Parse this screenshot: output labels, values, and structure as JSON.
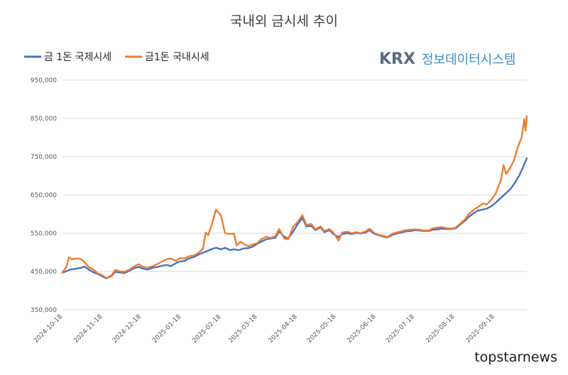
{
  "chart_data": {
    "type": "line",
    "title": "국내외 금시세 추이",
    "ylim": [
      350000,
      950000
    ],
    "y_ticks": [
      "350,000",
      "450,000",
      "550,000",
      "650,000",
      "750,000",
      "850,000",
      "950,000"
    ],
    "y_tick_values": [
      350000,
      450000,
      550000,
      650000,
      750000,
      850000,
      950000
    ],
    "x_start": "2024-10-18",
    "x_end": "2025-10-13",
    "x_ticks": [
      "2024-10-18",
      "2024-11-18",
      "2024-12-18",
      "2025-01-18",
      "2025-02-18",
      "2025-03-18",
      "2025-04-18",
      "2025-05-18",
      "2025-06-18",
      "2025-07-18",
      "2025-08-18",
      "2025-09-18"
    ],
    "grid": true,
    "legend_position": "top-left",
    "series": [
      {
        "name": "금 1돈 국제시세",
        "color": "#4472c4",
        "points": [
          [
            "2024-10-18",
            447000
          ],
          [
            "2024-10-21",
            451000
          ],
          [
            "2024-10-24",
            455000
          ],
          [
            "2024-10-28",
            457000
          ],
          [
            "2024-11-01",
            459000
          ],
          [
            "2024-11-04",
            463000
          ],
          [
            "2024-11-07",
            456000
          ],
          [
            "2024-11-11",
            448000
          ],
          [
            "2024-11-14",
            444000
          ],
          [
            "2024-11-18",
            437000
          ],
          [
            "2024-11-21",
            432000
          ],
          [
            "2024-11-25",
            438000
          ],
          [
            "2024-11-28",
            449000
          ],
          [
            "2024-12-02",
            447000
          ],
          [
            "2024-12-05",
            446000
          ],
          [
            "2024-12-09",
            452000
          ],
          [
            "2024-12-12",
            458000
          ],
          [
            "2024-12-16",
            462000
          ],
          [
            "2024-12-19",
            458000
          ],
          [
            "2024-12-23",
            455000
          ],
          [
            "2024-12-27",
            460000
          ],
          [
            "2024-12-31",
            462000
          ],
          [
            "2025-01-03",
            465000
          ],
          [
            "2025-01-07",
            467000
          ],
          [
            "2025-01-10",
            464000
          ],
          [
            "2025-01-14",
            472000
          ],
          [
            "2025-01-17",
            476000
          ],
          [
            "2025-01-21",
            478000
          ],
          [
            "2025-01-24",
            484000
          ],
          [
            "2025-01-28",
            488000
          ],
          [
            "2025-02-01",
            495000
          ],
          [
            "2025-02-04",
            499000
          ],
          [
            "2025-02-07",
            503000
          ],
          [
            "2025-02-11",
            509000
          ],
          [
            "2025-02-14",
            512000
          ],
          [
            "2025-02-18",
            508000
          ],
          [
            "2025-02-21",
            512000
          ],
          [
            "2025-02-25",
            506000
          ],
          [
            "2025-02-28",
            508000
          ],
          [
            "2025-03-04",
            506000
          ],
          [
            "2025-03-07",
            510000
          ],
          [
            "2025-03-11",
            511000
          ],
          [
            "2025-03-14",
            514000
          ],
          [
            "2025-03-18",
            522000
          ],
          [
            "2025-03-21",
            528000
          ],
          [
            "2025-03-25",
            534000
          ],
          [
            "2025-03-28",
            536000
          ],
          [
            "2025-04-01",
            538000
          ],
          [
            "2025-04-04",
            555000
          ],
          [
            "2025-04-08",
            541000
          ],
          [
            "2025-04-11",
            536000
          ],
          [
            "2025-04-15",
            555000
          ],
          [
            "2025-04-18",
            572000
          ],
          [
            "2025-04-22",
            590000
          ],
          [
            "2025-04-25",
            568000
          ],
          [
            "2025-04-29",
            569000
          ],
          [
            "2025-05-02",
            558000
          ],
          [
            "2025-05-06",
            565000
          ],
          [
            "2025-05-09",
            553000
          ],
          [
            "2025-05-13",
            558000
          ],
          [
            "2025-05-16",
            548000
          ],
          [
            "2025-05-20",
            540000
          ],
          [
            "2025-05-23",
            548000
          ],
          [
            "2025-05-27",
            550000
          ],
          [
            "2025-05-30",
            548000
          ],
          [
            "2025-06-03",
            551000
          ],
          [
            "2025-06-06",
            549000
          ],
          [
            "2025-06-10",
            552000
          ],
          [
            "2025-06-13",
            558000
          ],
          [
            "2025-06-17",
            548000
          ],
          [
            "2025-06-20",
            545000
          ],
          [
            "2025-06-24",
            541000
          ],
          [
            "2025-06-27",
            539000
          ],
          [
            "2025-07-01",
            546000
          ],
          [
            "2025-07-04",
            549000
          ],
          [
            "2025-07-08",
            552000
          ],
          [
            "2025-07-11",
            555000
          ],
          [
            "2025-07-15",
            556000
          ],
          [
            "2025-07-18",
            558000
          ],
          [
            "2025-07-22",
            557000
          ],
          [
            "2025-07-25",
            556000
          ],
          [
            "2025-07-29",
            556000
          ],
          [
            "2025-08-01",
            559000
          ],
          [
            "2025-08-05",
            560000
          ],
          [
            "2025-08-08",
            562000
          ],
          [
            "2025-08-12",
            561000
          ],
          [
            "2025-08-15",
            561000
          ],
          [
            "2025-08-19",
            563000
          ],
          [
            "2025-08-22",
            572000
          ],
          [
            "2025-08-26",
            582000
          ],
          [
            "2025-08-29",
            593000
          ],
          [
            "2025-09-02",
            603000
          ],
          [
            "2025-09-05",
            609000
          ],
          [
            "2025-09-09",
            612000
          ],
          [
            "2025-09-12",
            614000
          ],
          [
            "2025-09-16",
            622000
          ],
          [
            "2025-09-19",
            630000
          ],
          [
            "2025-09-23",
            643000
          ],
          [
            "2025-09-26",
            652000
          ],
          [
            "2025-09-30",
            664000
          ],
          [
            "2025-10-03",
            678000
          ],
          [
            "2025-10-07",
            700000
          ],
          [
            "2025-10-10",
            722000
          ],
          [
            "2025-10-13",
            746000
          ]
        ]
      },
      {
        "name": "금1돈 국내시세",
        "color": "#ed7d31",
        "points": [
          [
            "2024-10-18",
            448000
          ],
          [
            "2024-10-21",
            462000
          ],
          [
            "2024-10-23",
            487000
          ],
          [
            "2024-10-25",
            482000
          ],
          [
            "2024-10-29",
            484000
          ],
          [
            "2024-11-01",
            483000
          ],
          [
            "2024-11-04",
            475000
          ],
          [
            "2024-11-07",
            462000
          ],
          [
            "2024-11-11",
            455000
          ],
          [
            "2024-11-14",
            446000
          ],
          [
            "2024-11-18",
            440000
          ],
          [
            "2024-11-21",
            433000
          ],
          [
            "2024-11-25",
            440000
          ],
          [
            "2024-11-28",
            454000
          ],
          [
            "2024-12-02",
            450000
          ],
          [
            "2024-12-05",
            449000
          ],
          [
            "2024-12-09",
            455000
          ],
          [
            "2024-12-12",
            462000
          ],
          [
            "2024-12-16",
            469000
          ],
          [
            "2024-12-19",
            463000
          ],
          [
            "2024-12-23",
            460000
          ],
          [
            "2024-12-27",
            464000
          ],
          [
            "2024-12-31",
            470000
          ],
          [
            "2025-01-03",
            476000
          ],
          [
            "2025-01-07",
            482000
          ],
          [
            "2025-01-10",
            484000
          ],
          [
            "2025-01-14",
            478000
          ],
          [
            "2025-01-17",
            485000
          ],
          [
            "2025-01-21",
            484000
          ],
          [
            "2025-01-24",
            490000
          ],
          [
            "2025-01-28",
            492000
          ],
          [
            "2025-02-01",
            500000
          ],
          [
            "2025-02-04",
            510000
          ],
          [
            "2025-02-06",
            552000
          ],
          [
            "2025-02-08",
            545000
          ],
          [
            "2025-02-11",
            575000
          ],
          [
            "2025-02-14",
            612000
          ],
          [
            "2025-02-18",
            595000
          ],
          [
            "2025-02-21",
            550000
          ],
          [
            "2025-02-25",
            548000
          ],
          [
            "2025-02-28",
            549000
          ],
          [
            "2025-03-02",
            518000
          ],
          [
            "2025-03-05",
            528000
          ],
          [
            "2025-03-08",
            521000
          ],
          [
            "2025-03-11",
            516000
          ],
          [
            "2025-03-14",
            520000
          ],
          [
            "2025-03-18",
            524000
          ],
          [
            "2025-03-21",
            534000
          ],
          [
            "2025-03-25",
            541000
          ],
          [
            "2025-03-28",
            538000
          ],
          [
            "2025-04-01",
            542000
          ],
          [
            "2025-04-04",
            561000
          ],
          [
            "2025-04-08",
            536000
          ],
          [
            "2025-04-11",
            534000
          ],
          [
            "2025-04-15",
            568000
          ],
          [
            "2025-04-18",
            578000
          ],
          [
            "2025-04-22",
            597000
          ],
          [
            "2025-04-25",
            572000
          ],
          [
            "2025-04-29",
            574000
          ],
          [
            "2025-05-02",
            560000
          ],
          [
            "2025-05-06",
            568000
          ],
          [
            "2025-05-09",
            556000
          ],
          [
            "2025-05-13",
            561000
          ],
          [
            "2025-05-16",
            552000
          ],
          [
            "2025-05-20",
            531000
          ],
          [
            "2025-05-23",
            552000
          ],
          [
            "2025-05-27",
            554000
          ],
          [
            "2025-05-30",
            550000
          ],
          [
            "2025-06-03",
            553000
          ],
          [
            "2025-06-06",
            550000
          ],
          [
            "2025-06-10",
            555000
          ],
          [
            "2025-06-13",
            562000
          ],
          [
            "2025-06-17",
            550000
          ],
          [
            "2025-06-20",
            546000
          ],
          [
            "2025-06-24",
            543000
          ],
          [
            "2025-06-27",
            540000
          ],
          [
            "2025-07-01",
            549000
          ],
          [
            "2025-07-04",
            552000
          ],
          [
            "2025-07-08",
            555000
          ],
          [
            "2025-07-11",
            558000
          ],
          [
            "2025-07-15",
            559000
          ],
          [
            "2025-07-18",
            560000
          ],
          [
            "2025-07-22",
            559000
          ],
          [
            "2025-07-25",
            557000
          ],
          [
            "2025-07-29",
            557000
          ],
          [
            "2025-08-01",
            563000
          ],
          [
            "2025-08-05",
            565000
          ],
          [
            "2025-08-08",
            566000
          ],
          [
            "2025-08-12",
            563000
          ],
          [
            "2025-08-15",
            562000
          ],
          [
            "2025-08-19",
            565000
          ],
          [
            "2025-08-22",
            574000
          ],
          [
            "2025-08-26",
            586000
          ],
          [
            "2025-08-29",
            600000
          ],
          [
            "2025-09-02",
            612000
          ],
          [
            "2025-09-05",
            618000
          ],
          [
            "2025-09-09",
            628000
          ],
          [
            "2025-09-12",
            625000
          ],
          [
            "2025-09-16",
            640000
          ],
          [
            "2025-09-19",
            655000
          ],
          [
            "2025-09-23",
            690000
          ],
          [
            "2025-09-25",
            728000
          ],
          [
            "2025-09-27",
            705000
          ],
          [
            "2025-09-30",
            720000
          ],
          [
            "2025-10-03",
            740000
          ],
          [
            "2025-10-06",
            775000
          ],
          [
            "2025-10-09",
            800000
          ],
          [
            "2025-10-11",
            848000
          ],
          [
            "2025-10-12",
            818000
          ],
          [
            "2025-10-13",
            856000
          ]
        ]
      }
    ]
  },
  "logo": {
    "brand": "KRX",
    "text": "정보데이터시스템"
  },
  "watermark": "topstarnews"
}
